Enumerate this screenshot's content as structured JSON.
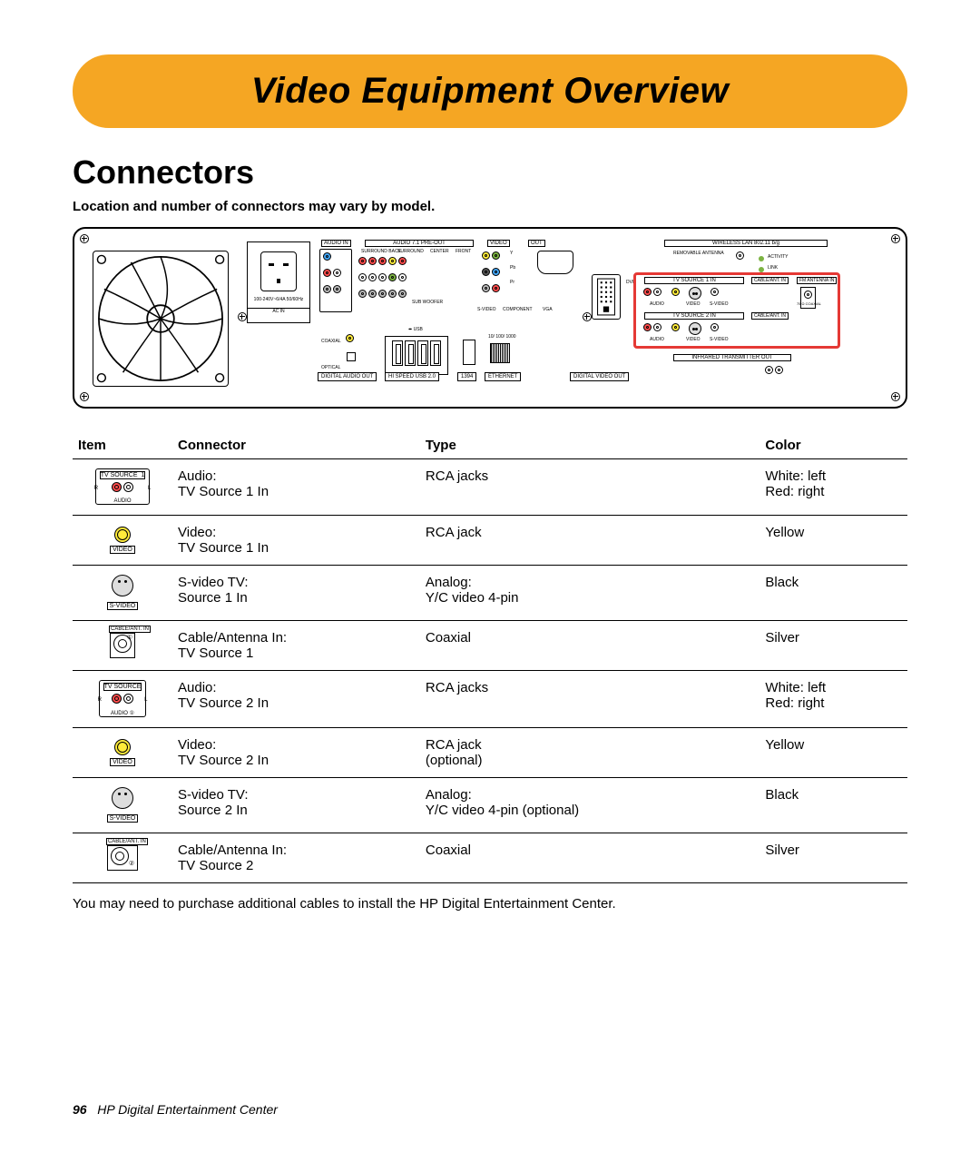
{
  "title": "Video Equipment Overview",
  "section": "Connectors",
  "subheading": "Location and number of connectors may vary by model.",
  "diagram": {
    "audio_in": "AUDIO IN",
    "audio_preout": "AUDIO 7.1 PRE-OUT",
    "surround_back": "SURROUND BACK",
    "surround": "SURROUND",
    "center": "CENTER",
    "front": "FRONT",
    "sub": "SUB WOOFER",
    "video": "VIDEO",
    "out": "OUT",
    "svideo": "S-VIDEO",
    "component": "COMPONENT",
    "vga": "VGA",
    "dvi": "DVI",
    "wireless": "WIRELESS LAN        802.11 b/g",
    "removable": "REMOVABLE ANTENNA",
    "activity": "ACTIVITY",
    "link": "LINK",
    "tvsrc1": "TV SOURCE   1   IN",
    "tvsrc2": "TV SOURCE   2   IN",
    "cableant1": "CABLE/ANT. IN",
    "cableant2": "CABLE/ANT. IN",
    "fmant": "FM ANTENNA IN",
    "audio_lbl": "AUDIO",
    "video_lbl": "VIDEO",
    "svideo_lbl": "S-VIDEO",
    "coaxial_lbl": "75 Ω COAXIAL",
    "ir_out": "INFRARED TRANSMITTER OUT",
    "coaxial": "COAXIAL",
    "optical": "OPTICAL",
    "digital_audio": "DIGITAL AUDIO OUT",
    "usb": "HI SPEED USB 2.0",
    "ieee1394": "1394",
    "ethernet": "ETHERNET",
    "eth_speed": "10/ 100/ 1000",
    "digital_video_out": "DIGITAL VIDEO OUT",
    "psu": "100-240V~6/4A 50/60Hz",
    "acin": "AC IN"
  },
  "table": {
    "headers": {
      "item": "Item",
      "connector": "Connector",
      "type": "Type",
      "color": "Color"
    },
    "rows": [
      {
        "icon": "rca-pair-1",
        "connector": "Audio:\nTV Source 1 In",
        "type": "RCA jacks",
        "color": "White: left\nRed: right"
      },
      {
        "icon": "rca-yellow",
        "connector": "Video:\nTV Source 1 In",
        "type": "RCA jack",
        "color": "Yellow"
      },
      {
        "icon": "svideo",
        "connector": "S-video TV:\nSource 1 In",
        "type": "Analog:\nY/C video 4-pin",
        "color": "Black"
      },
      {
        "icon": "coax-1",
        "connector": "Cable/Antenna In:\nTV Source 1",
        "type": "Coaxial",
        "color": "Silver"
      },
      {
        "icon": "rca-pair-2",
        "connector": "Audio:\nTV Source 2 In",
        "type": "RCA jacks",
        "color": "White: left\nRed: right"
      },
      {
        "icon": "rca-yellow",
        "connector": "Video:\nTV Source 2 In",
        "type": "RCA jack\n(optional)",
        "color": "Yellow"
      },
      {
        "icon": "svideo",
        "connector": "S-video TV:\nSource 2 In",
        "type": "Analog:\nY/C video 4-pin (optional)",
        "color": "Black"
      },
      {
        "icon": "coax-2",
        "connector": "Cable/Antenna In:\nTV Source 2",
        "type": "Coaxial",
        "color": "Silver"
      }
    ]
  },
  "footnote": "You may need to purchase additional cables to install the HP Digital Entertainment Center.",
  "footer": {
    "page": "96",
    "book": "HP Digital Entertainment Center"
  },
  "colors": {
    "banner": "#f5a623",
    "highlight": "#e53935",
    "red": "#ff4d4d",
    "yellow": "#ffeb3b",
    "green": "#7cb342",
    "blue": "#42a5f5"
  }
}
